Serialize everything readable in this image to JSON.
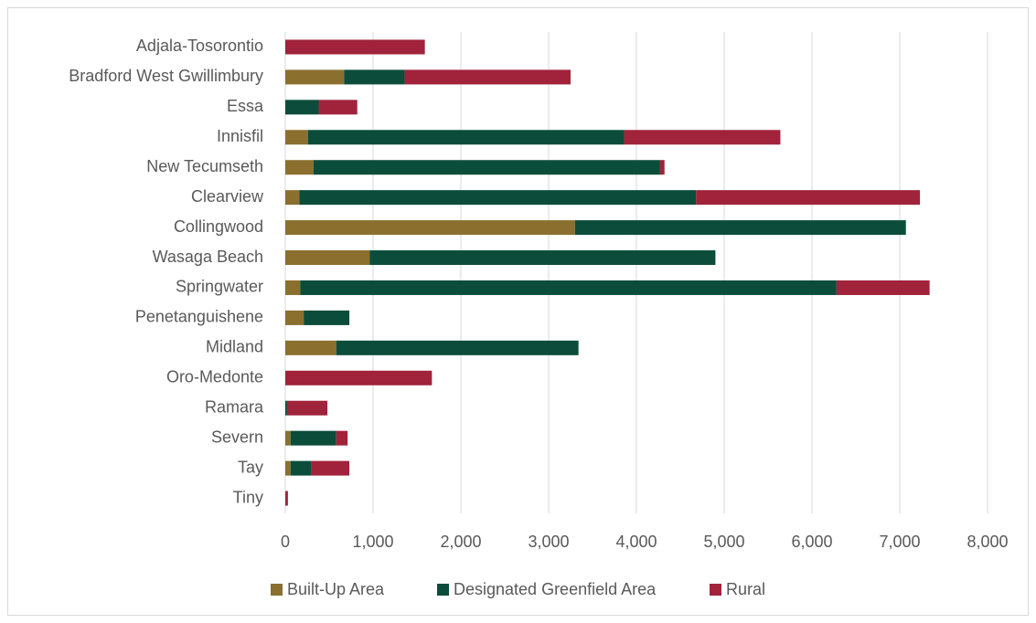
{
  "chart_data": {
    "type": "bar",
    "orientation": "horizontal",
    "stacked": true,
    "categories": [
      "Adjala-Tosorontio",
      "Bradford West Gwillimbury",
      "Essa",
      "Innisfil",
      "New Tecumseth",
      "Clearview",
      "Collingwood",
      "Wasaga Beach",
      "Springwater",
      "Penetanguishene",
      "Midland",
      "Oro-Medonte",
      "Ramara",
      "Severn",
      "Tay",
      "Tiny"
    ],
    "series": [
      {
        "name": "Built-Up Area",
        "color": "#8b6f2f",
        "values": [
          0,
          670,
          0,
          260,
          320,
          160,
          3300,
          960,
          170,
          210,
          580,
          0,
          0,
          60,
          60,
          0
        ]
      },
      {
        "name": "Designated Greenfield Area",
        "color": "#0b4d3a",
        "values": [
          0,
          690,
          380,
          3600,
          3950,
          4520,
          3770,
          3940,
          6110,
          520,
          2760,
          0,
          20,
          520,
          240,
          0
        ]
      },
      {
        "name": "Rural",
        "color": "#a0233b",
        "values": [
          1590,
          1890,
          440,
          1780,
          50,
          2550,
          0,
          0,
          1060,
          0,
          0,
          1670,
          460,
          130,
          430,
          30
        ]
      }
    ],
    "xlim": [
      0,
      8000
    ],
    "xticks": [
      0,
      {
        "value": 1000,
        "label": "1,000"
      },
      {
        "value": 2000,
        "label": "2,000"
      },
      {
        "value": 3000,
        "label": "3,000"
      },
      {
        "value": 4000,
        "label": "4,000"
      },
      {
        "value": 5000,
        "label": "5,000"
      },
      {
        "value": 6000,
        "label": "6,000"
      },
      {
        "value": 7000,
        "label": "7,000"
      },
      {
        "value": 8000,
        "label": "8,000"
      }
    ],
    "grid": true,
    "legend": "bottom"
  }
}
